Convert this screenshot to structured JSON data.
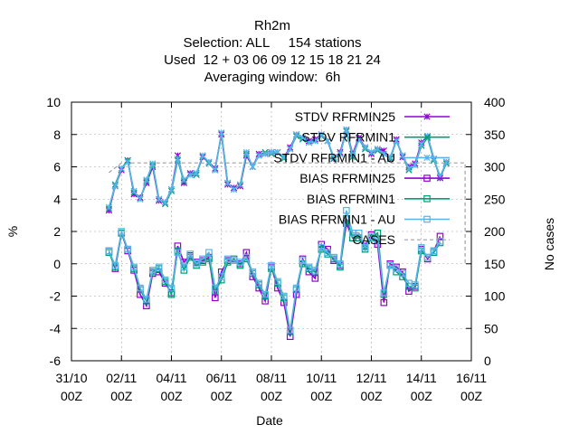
{
  "chart_data": {
    "type": "line",
    "title_lines": [
      "Rh2m",
      "Selection: ALL     154 stations",
      "Used  12 + 03 06 09 12 15 18 21 24",
      "Averaging window:  6h"
    ],
    "xlabel": "Date",
    "ylabel": "%",
    "y2label": "No cases",
    "x_ticks": [
      {
        "value": "2024-10-31T00:00",
        "day": "31/10",
        "hour": "00Z"
      },
      {
        "value": "2024-11-02T00:00",
        "day": "02/11",
        "hour": "00Z"
      },
      {
        "value": "2024-11-04T00:00",
        "day": "04/11",
        "hour": "00Z"
      },
      {
        "value": "2024-11-06T00:00",
        "day": "06/11",
        "hour": "00Z"
      },
      {
        "value": "2024-11-08T00:00",
        "day": "08/11",
        "hour": "00Z"
      },
      {
        "value": "2024-11-10T00:00",
        "day": "10/11",
        "hour": "00Z"
      },
      {
        "value": "2024-11-12T00:00",
        "day": "12/11",
        "hour": "00Z"
      },
      {
        "value": "2024-11-14T00:00",
        "day": "14/11",
        "hour": "00Z"
      },
      {
        "value": "2024-11-16T00:00",
        "day": "16/11",
        "hour": "00Z"
      }
    ],
    "xlim": [
      "2024-10-31T00:00",
      "2024-11-16T00:00"
    ],
    "ylim": [
      -6,
      10
    ],
    "y_ticks": [
      "-6",
      "-4",
      "-2",
      "0",
      "2",
      "4",
      "6",
      "8",
      "10"
    ],
    "y2lim": [
      0,
      400
    ],
    "y2_ticks": [
      "0",
      "50",
      "100",
      "150",
      "200",
      "250",
      "300",
      "350",
      "400"
    ],
    "grid": true,
    "legend_position": "top-right",
    "series": [
      {
        "name": "STDV RFRMIN25",
        "axis": "y",
        "color": "#9400d3",
        "marker": "star",
        "x_start": "2024-11-01T12:00",
        "step_hours": 6,
        "values": [
          3.3,
          4.8,
          5.8,
          6.4,
          4.3,
          4.1,
          5.0,
          6.0,
          3.9,
          3.8,
          4.6,
          6.7,
          5.0,
          5.6,
          5.6,
          6.6,
          6.3,
          5.9,
          8.0,
          4.9,
          4.7,
          4.8,
          6.7,
          6.0,
          6.8,
          6.8,
          6.9,
          6.9,
          6.6,
          7.2,
          8.0,
          7.8,
          7.6,
          7.7,
          8.0,
          7.6,
          6.5,
          6.9,
          8.3,
          6.8,
          7.8,
          7.2,
          6.8,
          7.1,
          7.0,
          6.5,
          7.7,
          6.6,
          6.0,
          6.2,
          7.5,
          7.9,
          6.5,
          5.3,
          6.3
        ]
      },
      {
        "name": "STDV RFRMIN1",
        "axis": "y",
        "color": "#009e73",
        "marker": "cross",
        "x_start": "2024-11-01T12:00",
        "step_hours": 6,
        "values": [
          3.4,
          4.9,
          5.9,
          6.4,
          4.4,
          4.0,
          5.1,
          6.1,
          4.0,
          3.7,
          4.5,
          6.4,
          5.1,
          5.5,
          5.5,
          6.7,
          6.2,
          5.8,
          8.1,
          5.0,
          4.6,
          4.9,
          6.8,
          6.0,
          6.7,
          6.9,
          6.8,
          6.9,
          6.5,
          7.1,
          7.9,
          7.7,
          7.5,
          7.6,
          7.9,
          7.6,
          6.5,
          6.8,
          8.2,
          6.6,
          7.7,
          7.1,
          6.9,
          7.0,
          6.8,
          6.5,
          7.6,
          6.7,
          5.8,
          6.1,
          7.3,
          7.8,
          6.4,
          5.4,
          6.2
        ]
      },
      {
        "name": "STDV RFRMIN1 - AU",
        "axis": "y",
        "color": "#56b4e9",
        "marker": "star",
        "x_start": "2024-11-01T12:00",
        "step_hours": 6,
        "values": [
          3.5,
          4.8,
          5.9,
          6.3,
          4.5,
          4.0,
          5.2,
          6.2,
          4.0,
          3.8,
          4.6,
          6.5,
          5.2,
          5.5,
          5.6,
          6.7,
          6.3,
          5.8,
          8.1,
          5.0,
          4.6,
          4.9,
          6.9,
          6.0,
          6.7,
          6.8,
          6.9,
          6.9,
          6.6,
          7.1,
          8.0,
          7.8,
          7.5,
          7.6,
          8.0,
          7.6,
          6.6,
          6.8,
          8.3,
          6.7,
          7.7,
          7.2,
          6.9,
          7.1,
          6.8,
          6.6,
          7.6,
          6.7,
          5.9,
          6.1,
          7.4,
          7.9,
          6.5,
          5.4,
          6.3
        ]
      },
      {
        "name": "BIAS RFRMIN25",
        "axis": "y",
        "color": "#9400d3",
        "marker": "square",
        "x_start": "2024-11-01T12:00",
        "step_hours": 6,
        "values": [
          0.8,
          -0.3,
          1.9,
          0.8,
          -0.4,
          -1.9,
          -2.6,
          -0.6,
          -0.5,
          -1.2,
          -1.8,
          1.1,
          0.1,
          0.5,
          0.1,
          0.2,
          0.4,
          -2.1,
          -0.5,
          0.2,
          0.2,
          0.0,
          0.7,
          -0.8,
          -1.5,
          -2.3,
          -0.2,
          -1.5,
          -2.4,
          -4.5,
          -1.9,
          0.3,
          -0.5,
          -0.9,
          1.2,
          0.9,
          0.2,
          -0.1,
          2.5,
          1.6,
          1.6,
          1.1,
          1.8,
          1.2,
          -2.4,
          0.0,
          -0.2,
          -0.5,
          -1.7,
          -1.4,
          0.9,
          0.3,
          0.8,
          1.7
        ]
      },
      {
        "name": "BIAS RFRMIN1",
        "axis": "y",
        "color": "#009e73",
        "marker": "square",
        "x_start": "2024-11-01T12:00",
        "step_hours": 6,
        "values": [
          0.7,
          -0.2,
          1.9,
          0.9,
          -0.3,
          -1.6,
          -2.3,
          -0.5,
          -0.3,
          -1.1,
          -1.9,
          0.8,
          -0.4,
          0.4,
          -0.1,
          0.1,
          0.3,
          -1.7,
          -1.0,
          0.1,
          0.3,
          -0.1,
          0.3,
          -0.6,
          -1.3,
          -2.0,
          -0.3,
          -1.2,
          -2.1,
          -4.2,
          -1.6,
          0.0,
          -0.3,
          -0.5,
          0.9,
          0.6,
          0.3,
          -0.2,
          2.8,
          1.6,
          1.6,
          0.9,
          1.6,
          1.9,
          -1.9,
          -0.1,
          -0.5,
          -0.8,
          -1.4,
          -1.5,
          0.8,
          0.4,
          0.7,
          1.3
        ]
      },
      {
        "name": "BIAS RFRMIN1 - AU",
        "axis": "y",
        "color": "#56b4e9",
        "marker": "square",
        "x_start": "2024-11-01T12:00",
        "step_hours": 6,
        "values": [
          0.8,
          -0.1,
          2.0,
          0.9,
          -0.2,
          -1.5,
          -2.2,
          -0.4,
          -0.2,
          -1.0,
          -1.5,
          0.7,
          -0.2,
          0.6,
          0.0,
          0.3,
          0.7,
          -1.5,
          -0.8,
          0.3,
          0.2,
          0.1,
          0.4,
          -0.5,
          -1.2,
          -1.9,
          -0.1,
          -1.1,
          -2.0,
          -4.1,
          -1.5,
          0.2,
          -0.2,
          -0.4,
          1.0,
          0.7,
          0.4,
          0.0,
          3.3,
          1.9,
          1.9,
          1.0,
          1.7,
          1.5,
          -1.8,
          -0.1,
          -0.3,
          -0.6,
          -1.2,
          -1.3,
          1.0,
          0.4,
          0.8,
          1.4
        ]
      },
      {
        "name": "CASES",
        "axis": "y2",
        "color": "#a0a0a0",
        "dash": true,
        "x": [
          "2024-11-01T12:00",
          "2024-11-02T00:00",
          "2024-11-08T00:00",
          "2024-11-12T00:00",
          "2024-11-14T00:00",
          "2024-11-15T12:00",
          "2024-11-15T18:00",
          "2024-11-15T18:00"
        ],
        "values": [
          291,
          306,
          306,
          306,
          306,
          306,
          306,
          150
        ]
      }
    ]
  }
}
